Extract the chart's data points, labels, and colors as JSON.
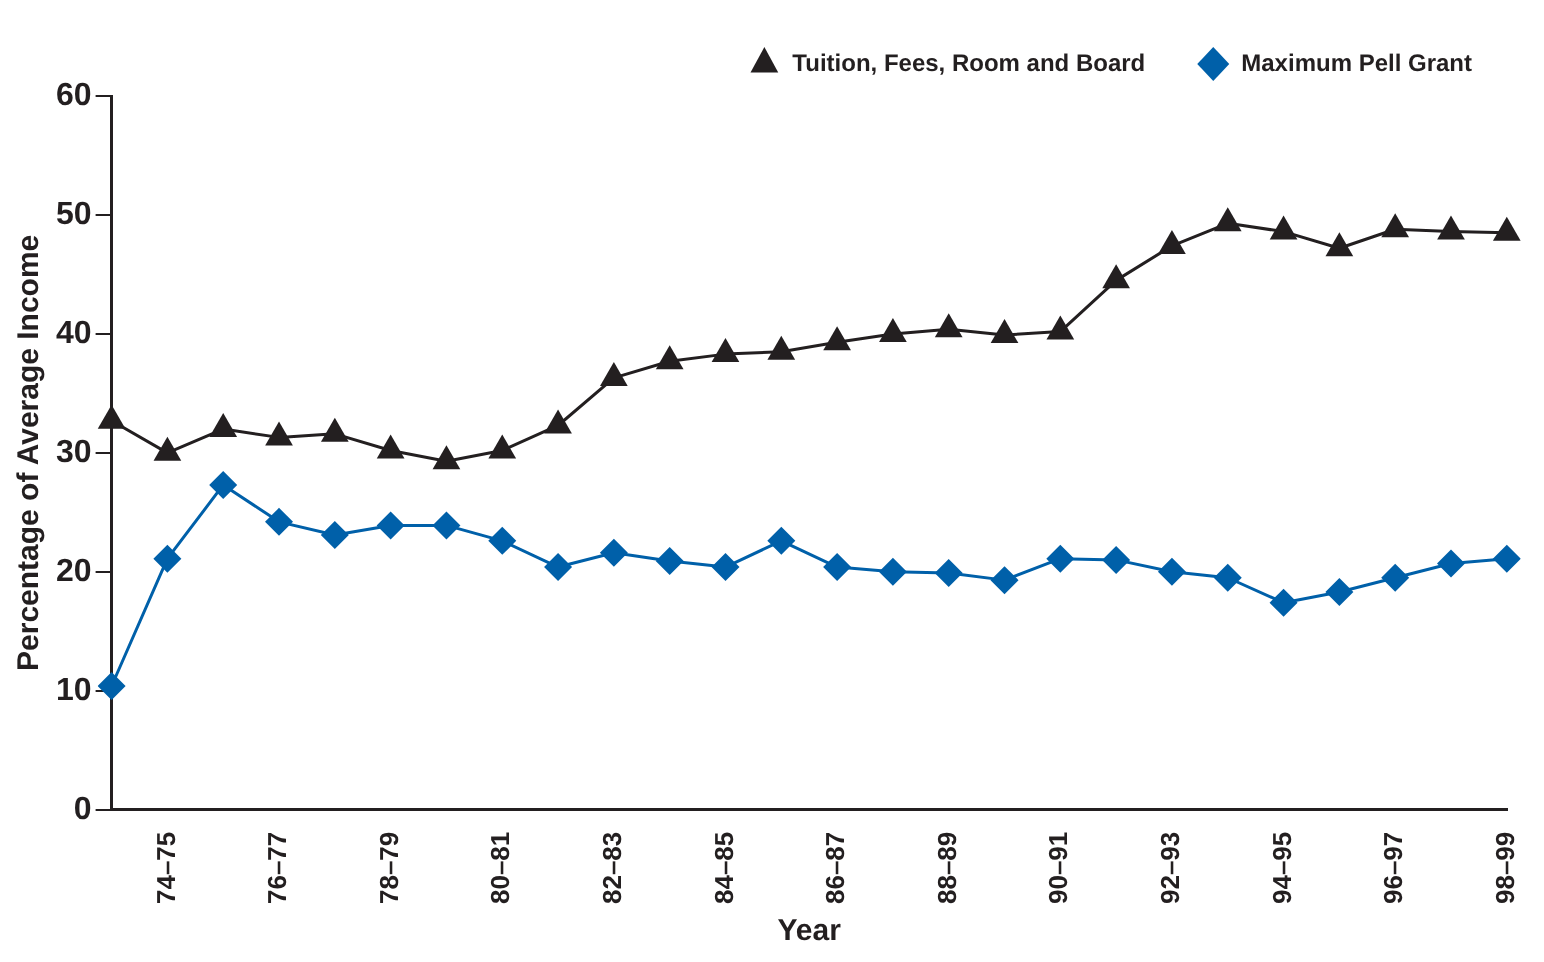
{
  "chart_data": {
    "type": "line",
    "xlabel": "Year",
    "ylabel": "Percentage of Average Income",
    "categories": [
      null,
      "74–75",
      null,
      "76–77",
      null,
      "78–79",
      null,
      "80–81",
      null,
      "82–83",
      null,
      "84–85",
      null,
      "86–87",
      null,
      "88–89",
      null,
      "90–91",
      null,
      "92–93",
      null,
      "94–95",
      null,
      "96–97",
      null,
      "98–99"
    ],
    "series": [
      {
        "name": "Tuition, Fees, Room and Board",
        "color": "#231f20",
        "marker": "triangle",
        "values": [
          32.7,
          30.0,
          32.0,
          31.3,
          31.6,
          30.2,
          29.3,
          30.2,
          32.3,
          36.3,
          37.7,
          38.3,
          38.5,
          39.3,
          40.0,
          40.4,
          39.9,
          40.2,
          44.5,
          47.4,
          49.3,
          48.6,
          47.2,
          48.8,
          48.6,
          48.5
        ]
      },
      {
        "name": "Maximum Pell Grant",
        "color": "#0060a9",
        "marker": "diamond",
        "values": [
          10.4,
          21.1,
          27.3,
          24.2,
          23.1,
          23.9,
          23.9,
          22.6,
          20.4,
          21.6,
          20.9,
          20.4,
          22.6,
          20.4,
          20.0,
          19.9,
          19.3,
          21.1,
          21.0,
          20.0,
          19.5,
          17.4,
          18.3,
          19.5,
          20.7,
          21.1
        ]
      }
    ],
    "ylim": [
      0,
      60
    ],
    "yticks": [
      0,
      10,
      20,
      30,
      40,
      50,
      60
    ],
    "grid": false,
    "legend": "top right",
    "line_style": "solid"
  }
}
